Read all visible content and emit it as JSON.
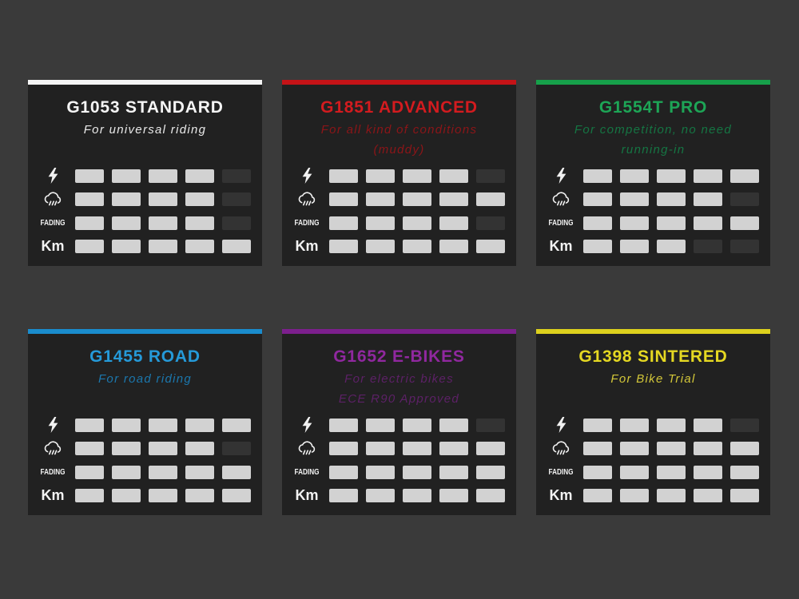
{
  "colors": {
    "page_background": "#3a3a3a",
    "card_background": "#212121",
    "bar_filled": "#d2d2d2",
    "bar_empty": "#333333",
    "label_color": "#f2f2f2"
  },
  "rating_scale": 5,
  "rating_rows": [
    {
      "key": "power",
      "icon": "lightning-bolt-icon",
      "label": ""
    },
    {
      "key": "wet",
      "icon": "rain-cloud-icon",
      "label": ""
    },
    {
      "key": "fading",
      "icon": "",
      "label": "FADING"
    },
    {
      "key": "km",
      "icon": "",
      "label": "Km"
    }
  ],
  "cards": [
    {
      "title": "G1053 STANDARD",
      "subtitle_lines": [
        "For universal riding"
      ],
      "accent_color": "#f5f5f5",
      "title_color": "#f5f5f5",
      "subtitle_color": "#e9e9e9",
      "ratings": {
        "power": 4,
        "wet": 4,
        "fading": 4,
        "km": 5
      }
    },
    {
      "title": "G1851 ADVANCED",
      "subtitle_lines": [
        "For all kind of conditions",
        "(muddy)"
      ],
      "accent_color": "#c51317",
      "title_color": "#d31b1f",
      "subtitle_color": "#8c1518",
      "ratings": {
        "power": 4,
        "wet": 5,
        "fading": 4,
        "km": 5
      }
    },
    {
      "title": "G1554T PRO",
      "subtitle_lines": [
        "For competition, no need",
        "running-in"
      ],
      "accent_color": "#16a04a",
      "title_color": "#1da556",
      "subtitle_color": "#157543",
      "ratings": {
        "power": 5,
        "wet": 4,
        "fading": 5,
        "km": 3
      }
    },
    {
      "title": "G1455 ROAD",
      "subtitle_lines": [
        "For road riding"
      ],
      "accent_color": "#1a8ccd",
      "title_color": "#259ad9",
      "subtitle_color": "#1b77ad",
      "ratings": {
        "power": 5,
        "wet": 4,
        "fading": 5,
        "km": 5
      }
    },
    {
      "title": "G1652 E-BIKES",
      "subtitle_lines": [
        "For electric bikes",
        "ECE R90 Approved"
      ],
      "accent_color": "#7c1f8d",
      "title_color": "#90289f",
      "subtitle_color": "#5c2166",
      "ratings": {
        "power": 4,
        "wet": 5,
        "fading": 5,
        "km": 5
      }
    },
    {
      "title": "G1398 SINTERED",
      "subtitle_lines": [
        "For Bike Trial"
      ],
      "accent_color": "#ddd11d",
      "title_color": "#e5d822",
      "subtitle_color": "#d3c739",
      "ratings": {
        "power": 4,
        "wet": 5,
        "fading": 5,
        "km": 5
      }
    }
  ],
  "chart_data": {
    "type": "table",
    "rating_max": 5,
    "metrics": [
      "power",
      "wet-conditions",
      "fading",
      "km-durability"
    ],
    "products": [
      {
        "name": "G1053 STANDARD",
        "values": [
          4,
          4,
          4,
          5
        ]
      },
      {
        "name": "G1851 ADVANCED",
        "values": [
          4,
          5,
          4,
          5
        ]
      },
      {
        "name": "G1554T PRO",
        "values": [
          5,
          4,
          5,
          3
        ]
      },
      {
        "name": "G1455 ROAD",
        "values": [
          5,
          4,
          5,
          5
        ]
      },
      {
        "name": "G1652 E-BIKES",
        "values": [
          4,
          5,
          5,
          5
        ]
      },
      {
        "name": "G1398 SINTERED",
        "values": [
          4,
          5,
          5,
          5
        ]
      }
    ]
  }
}
